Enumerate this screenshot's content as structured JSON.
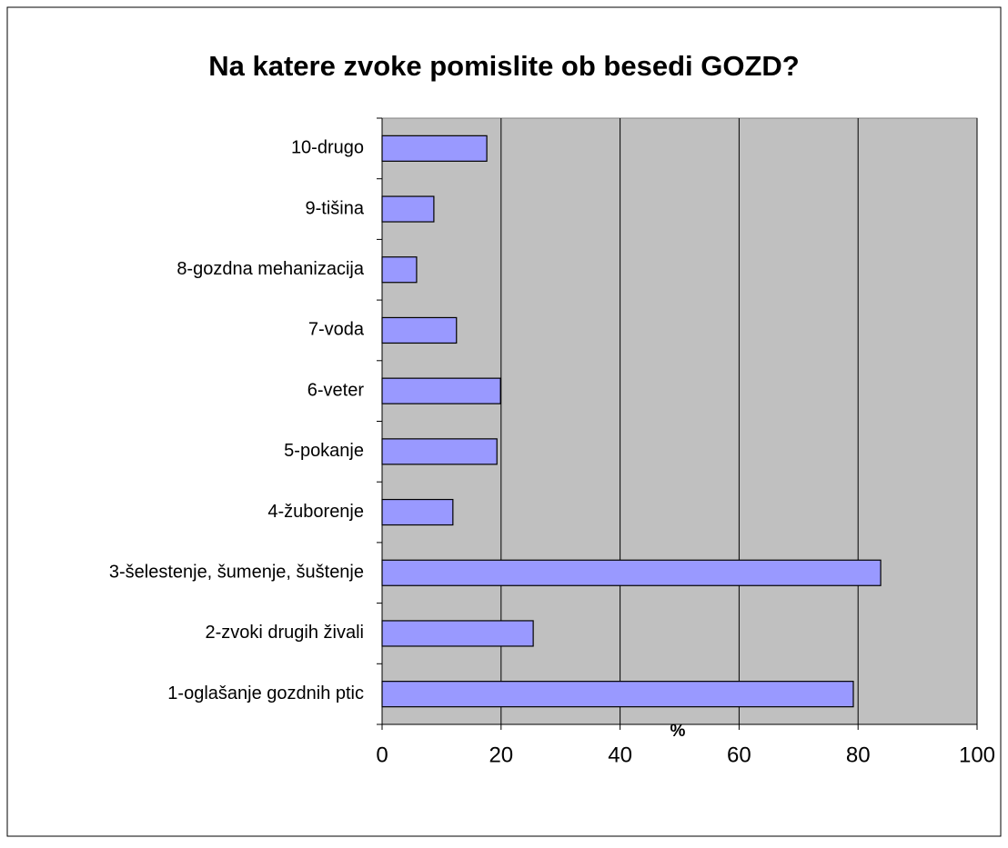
{
  "chart_data": {
    "type": "bar",
    "orientation": "horizontal",
    "title": "Na katere zvoke pomislite ob besedi GOZD?",
    "x_label": "%",
    "categories": [
      "1-oglašanje gozdnih ptic",
      "2-zvoki drugih živali",
      "3-šelestenje, šumenje, šuštenje",
      "4-žuborenje",
      "5-pokanje",
      "6-veter",
      "7-voda",
      "8-gozdna mehanizacija",
      "9-tišina",
      "10-drugo"
    ],
    "values": [
      79.2,
      25.4,
      83.8,
      11.9,
      19.3,
      19.9,
      12.5,
      5.8,
      8.7,
      17.6
    ],
    "color": "#9999ff",
    "xlim": [
      0,
      100
    ],
    "xticks": [
      0,
      20,
      40,
      60,
      80,
      100
    ],
    "grid": true
  }
}
